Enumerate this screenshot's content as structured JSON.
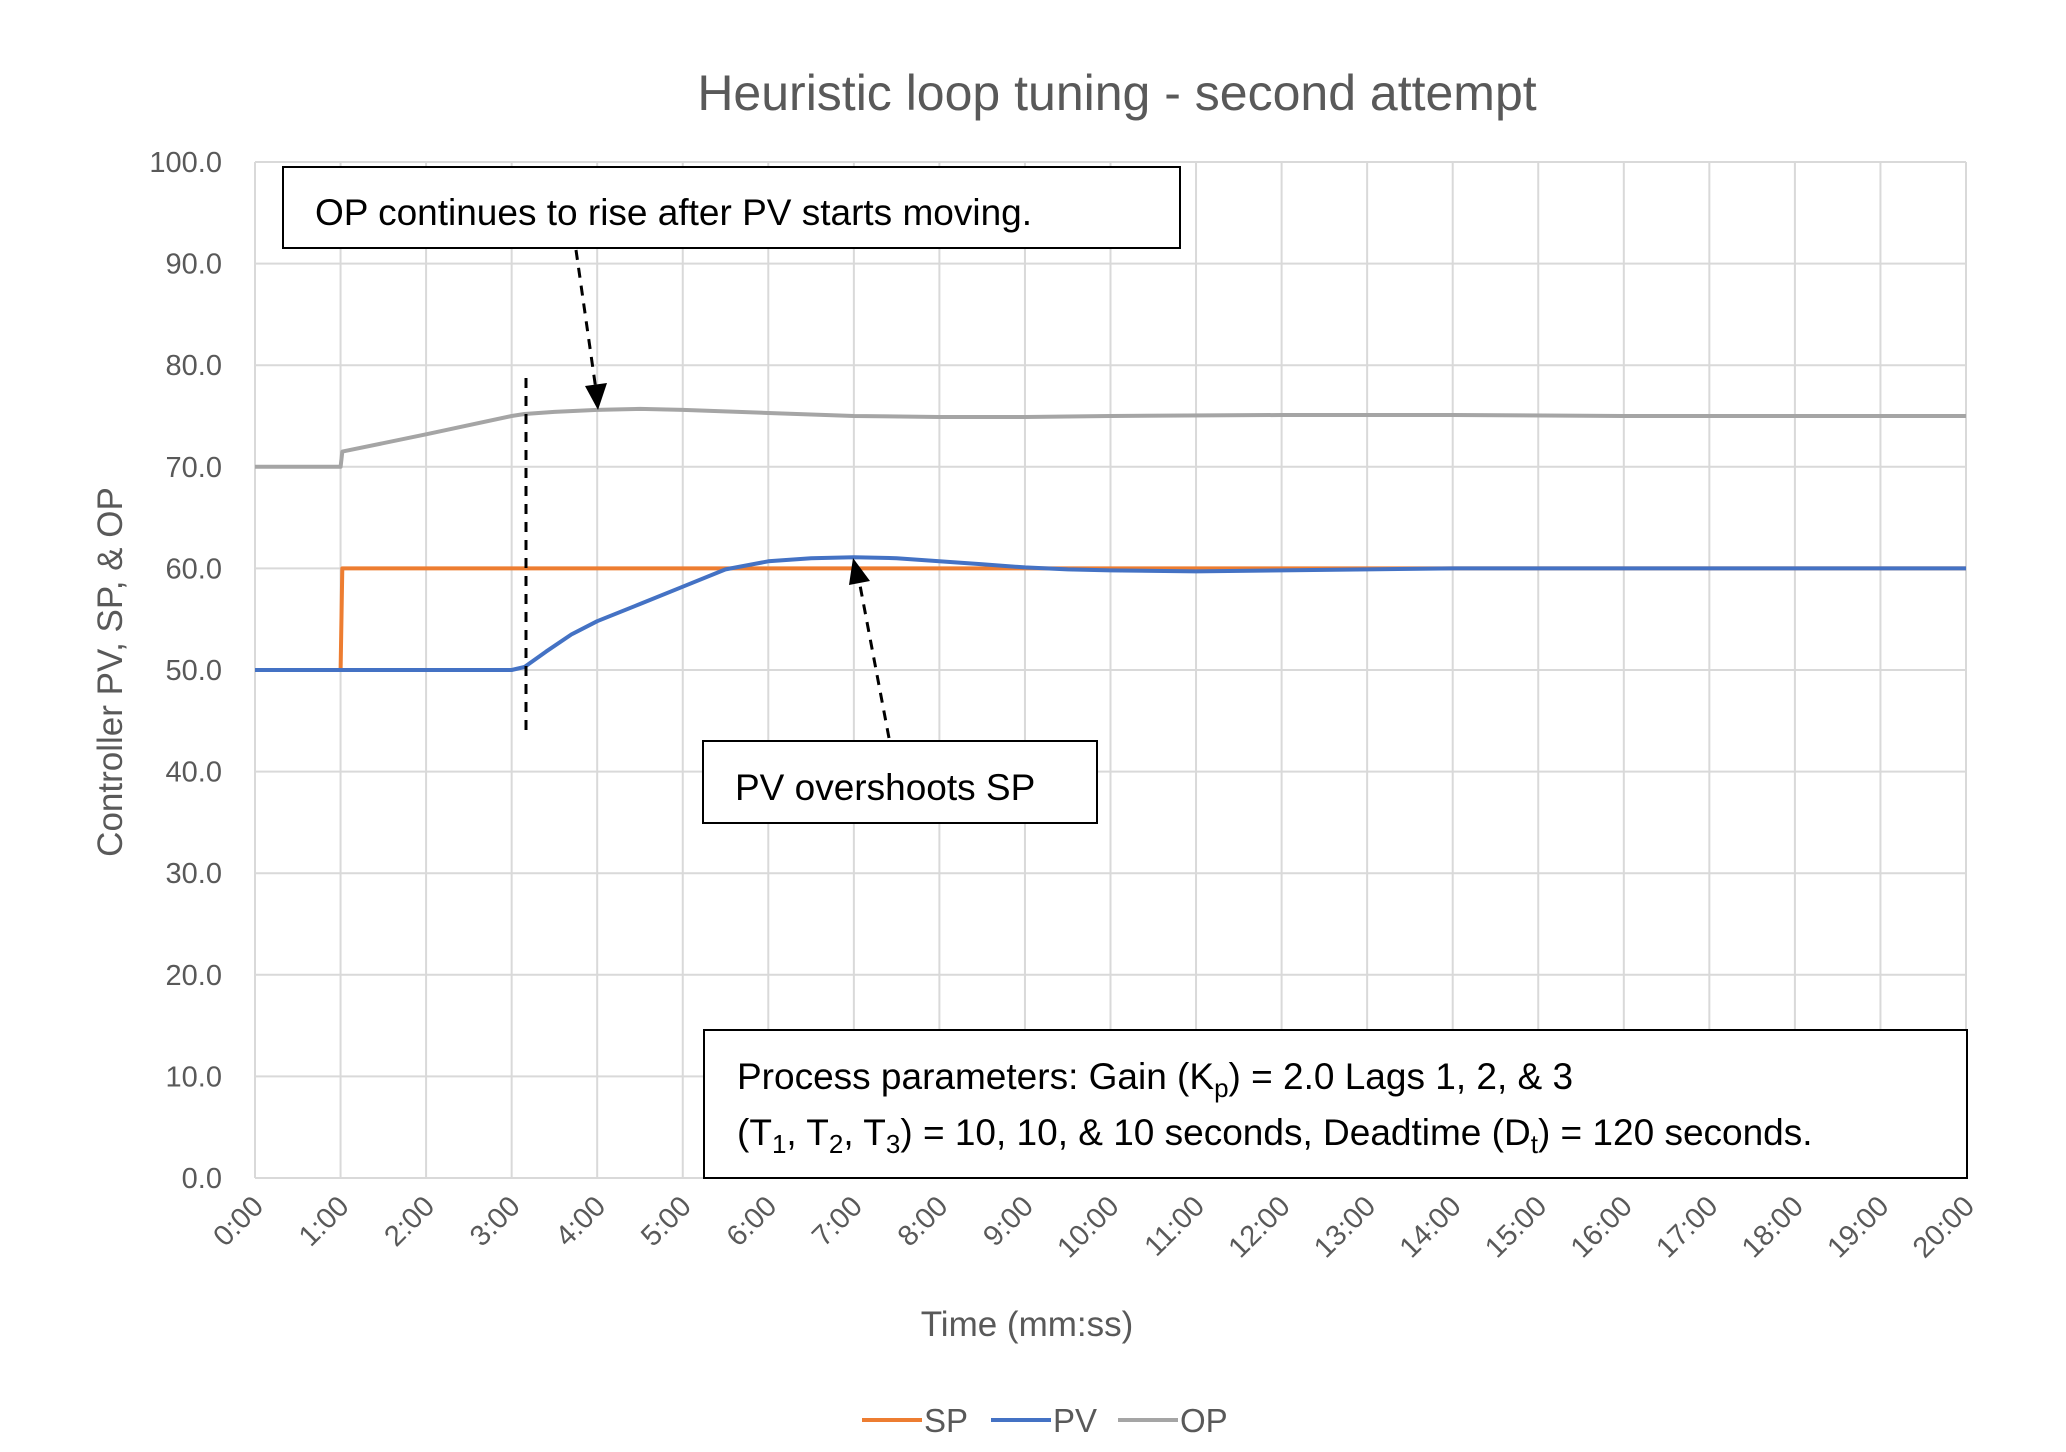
{
  "chart_data": {
    "type": "line",
    "title": "Heuristic loop tuning - second attempt",
    "xlabel": "Time (mm:ss)",
    "ylabel": "Controller PV, SP, & OP",
    "x_ticks": [
      "0:00",
      "1:00",
      "2:00",
      "3:00",
      "4:00",
      "5:00",
      "6:00",
      "7:00",
      "8:00",
      "9:00",
      "10:00",
      "11:00",
      "12:00",
      "13:00",
      "14:00",
      "15:00",
      "16:00",
      "17:00",
      "18:00",
      "19:00",
      "20:00"
    ],
    "y_ticks": [
      "0.0",
      "10.0",
      "20.0",
      "30.0",
      "40.0",
      "50.0",
      "60.0",
      "70.0",
      "80.0",
      "90.0",
      "100.0"
    ],
    "xlim": [
      0,
      20
    ],
    "ylim": [
      0,
      100
    ],
    "grid": true,
    "legend_position": "bottom",
    "series": [
      {
        "name": "SP",
        "color": "#ed7d31",
        "x": [
          0,
          1.0,
          1.02,
          20
        ],
        "y": [
          50,
          50,
          60,
          60
        ]
      },
      {
        "name": "PV",
        "color": "#4472c4",
        "x": [
          0,
          3.0,
          3.15,
          3.4,
          3.7,
          4.0,
          4.5,
          5.0,
          5.5,
          6.0,
          6.5,
          7.0,
          7.5,
          8.0,
          8.5,
          9.0,
          9.5,
          10.0,
          11.0,
          12.0,
          13.0,
          14.0,
          15.0,
          20.0
        ],
        "y": [
          50,
          50,
          50.3,
          51.8,
          53.5,
          54.8,
          56.5,
          58.2,
          59.9,
          60.7,
          61.0,
          61.1,
          61.0,
          60.7,
          60.4,
          60.1,
          59.9,
          59.8,
          59.7,
          59.8,
          59.9,
          60.0,
          60.0,
          60.0
        ]
      },
      {
        "name": "OP",
        "color": "#a5a5a5",
        "x": [
          0,
          1.0,
          1.02,
          2.0,
          3.0,
          3.15,
          3.5,
          4.0,
          4.5,
          5.0,
          6.0,
          7.0,
          8.0,
          9.0,
          10.0,
          12.0,
          14.0,
          16.0,
          20.0
        ],
        "y": [
          70,
          70,
          71.5,
          73.2,
          75.0,
          75.2,
          75.4,
          75.6,
          75.7,
          75.6,
          75.3,
          75.0,
          74.9,
          74.9,
          75.0,
          75.1,
          75.1,
          75.0,
          75.0
        ]
      }
    ],
    "annotations": {
      "op_note": "OP continues to rise after PV starts moving.",
      "pv_note": "PV overshoots SP",
      "process_line1_pre": "Process parameters:  Gain (K",
      "process_line1_sub": "p",
      "process_line1_post": ") = 2.0 Lags 1, 2, & 3",
      "process_line2_a": "(T",
      "process_line2_sub1": "1",
      "process_line2_b": ", T",
      "process_line2_sub2": "2",
      "process_line2_c": ", T",
      "process_line2_sub3": "3",
      "process_line2_d": ") = 10, 10, & 10 seconds, Deadtime (D",
      "process_line2_sub4": "t",
      "process_line2_e": ") = 120 seconds."
    }
  }
}
